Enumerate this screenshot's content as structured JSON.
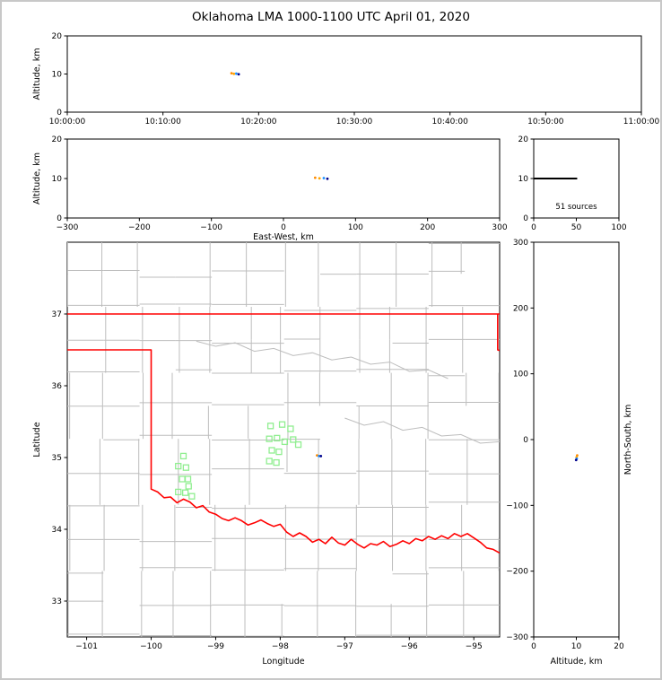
{
  "title": "Oklahoma LMA 1000-1100 UTC April 01, 2020",
  "colors": {
    "frame": "#c8c8c8",
    "axis": "#000000",
    "county": "#bdbdbd",
    "state_border": "#ff0000",
    "cg_marker": "#90ee90",
    "profile_line": "#000000"
  },
  "chart_data": [
    {
      "id": "time_height",
      "type": "scatter",
      "ylabel": "Altitude, km",
      "xlim": [
        36000,
        39600
      ],
      "ylim": [
        0,
        20
      ],
      "xticks": {
        "values": [
          36000,
          36600,
          37200,
          37800,
          38400,
          39000,
          39600
        ],
        "labels": [
          "10:00:00",
          "10:10:00",
          "10:20:00",
          "10:30:00",
          "10:40:00",
          "10:50:00",
          "11:00:00"
        ]
      },
      "yticks": {
        "values": [
          0,
          10,
          20
        ],
        "labels": [
          "0",
          "10",
          "20"
        ]
      },
      "points": [
        [
          37030,
          10.2,
          "#ff8c00"
        ],
        [
          37045,
          10.05,
          "#ffa500"
        ],
        [
          37060,
          10.1,
          "#1e90ff"
        ],
        [
          37075,
          9.95,
          "#00008b"
        ]
      ]
    },
    {
      "id": "ew_height",
      "type": "scatter",
      "xlabel": "East-West, km",
      "ylabel": "Altitude, km",
      "xlim": [
        -300,
        300
      ],
      "ylim": [
        0,
        20
      ],
      "xticks": {
        "values": [
          -300,
          -200,
          -100,
          0,
          100,
          200,
          300
        ],
        "labels": [
          "−300",
          "−200",
          "−100",
          "0",
          "100",
          "200",
          "300"
        ]
      },
      "yticks": {
        "values": [
          0,
          10,
          20
        ],
        "labels": [
          "0",
          "10",
          "20"
        ]
      },
      "points": [
        [
          44,
          10.2,
          "#ff8c00"
        ],
        [
          50,
          10.05,
          "#ffa500"
        ],
        [
          56,
          10.1,
          "#1e90ff"
        ],
        [
          61,
          9.95,
          "#00008b"
        ]
      ]
    },
    {
      "id": "alt_histogram",
      "type": "line",
      "annotation": "51 sources",
      "xlim": [
        0,
        100
      ],
      "ylim": [
        0,
        20
      ],
      "xticks": {
        "values": [
          0,
          50,
          100
        ],
        "labels": [
          "0",
          "50",
          "100"
        ]
      },
      "yticks": {
        "values": [
          0,
          10,
          20
        ],
        "labels": [
          "0",
          "10",
          "20"
        ]
      },
      "profile": {
        "altitude_km": 10,
        "count": 51
      }
    },
    {
      "id": "plan_view",
      "type": "scatter",
      "xlabel": "Longitude",
      "ylabel": "Latitude",
      "xlim": [
        -101.3,
        -94.6
      ],
      "ylim": [
        32.5,
        38.0
      ],
      "xticks": {
        "values": [
          -101,
          -100,
          -99,
          -98,
          -97,
          -96,
          -95
        ],
        "labels": [
          "−101",
          "−100",
          "−99",
          "−98",
          "−97",
          "−96",
          "−95"
        ]
      },
      "yticks": {
        "values": [
          33,
          34,
          35,
          36,
          37
        ],
        "labels": [
          "33",
          "34",
          "35",
          "36",
          "37"
        ]
      },
      "counties": {
        "lon_step": 0.56,
        "lat_step": 0.46
      },
      "state_border": [
        [
          [
            -101.3,
            37.0
          ],
          [
            -94.6,
            37.0
          ]
        ],
        [
          [
            -94.63,
            37.0
          ],
          [
            -94.63,
            36.5
          ],
          [
            -94.6,
            36.49
          ]
        ],
        [
          [
            -101.3,
            36.5
          ],
          [
            -100.0,
            36.5
          ],
          [
            -100.0,
            34.56
          ],
          [
            -99.9,
            34.52
          ],
          [
            -99.8,
            34.44
          ],
          [
            -99.7,
            34.45
          ],
          [
            -99.6,
            34.37
          ],
          [
            -99.5,
            34.42
          ],
          [
            -99.4,
            34.38
          ],
          [
            -99.3,
            34.3
          ],
          [
            -99.2,
            34.33
          ],
          [
            -99.1,
            34.24
          ],
          [
            -99.0,
            34.21
          ],
          [
            -98.9,
            34.15
          ],
          [
            -98.8,
            34.12
          ],
          [
            -98.7,
            34.16
          ],
          [
            -98.6,
            34.12
          ],
          [
            -98.5,
            34.06
          ],
          [
            -98.4,
            34.09
          ],
          [
            -98.3,
            34.13
          ],
          [
            -98.2,
            34.08
          ],
          [
            -98.1,
            34.04
          ],
          [
            -98.0,
            34.07
          ],
          [
            -97.9,
            33.96
          ],
          [
            -97.8,
            33.9
          ],
          [
            -97.7,
            33.95
          ],
          [
            -97.6,
            33.9
          ],
          [
            -97.5,
            33.82
          ],
          [
            -97.4,
            33.86
          ],
          [
            -97.3,
            33.8
          ],
          [
            -97.2,
            33.89
          ],
          [
            -97.1,
            33.81
          ],
          [
            -97.0,
            33.78
          ],
          [
            -96.9,
            33.86
          ],
          [
            -96.8,
            33.79
          ],
          [
            -96.7,
            33.74
          ],
          [
            -96.6,
            33.8
          ],
          [
            -96.5,
            33.78
          ],
          [
            -96.4,
            33.83
          ],
          [
            -96.3,
            33.76
          ],
          [
            -96.2,
            33.79
          ],
          [
            -96.1,
            33.84
          ],
          [
            -96.0,
            33.8
          ],
          [
            -95.9,
            33.87
          ],
          [
            -95.8,
            33.84
          ],
          [
            -95.7,
            33.9
          ],
          [
            -95.6,
            33.86
          ],
          [
            -95.5,
            33.91
          ],
          [
            -95.4,
            33.87
          ],
          [
            -95.3,
            33.94
          ],
          [
            -95.2,
            33.9
          ],
          [
            -95.1,
            33.94
          ],
          [
            -95.0,
            33.88
          ],
          [
            -94.9,
            33.82
          ],
          [
            -94.8,
            33.74
          ],
          [
            -94.7,
            33.72
          ],
          [
            -94.6,
            33.67
          ]
        ]
      ],
      "rivers": [
        [
          [
            -99.3,
            36.62
          ],
          [
            -99.0,
            36.55
          ],
          [
            -98.7,
            36.6
          ],
          [
            -98.4,
            36.48
          ],
          [
            -98.1,
            36.52
          ],
          [
            -97.8,
            36.42
          ],
          [
            -97.5,
            36.46
          ],
          [
            -97.2,
            36.36
          ],
          [
            -96.9,
            36.4
          ],
          [
            -96.6,
            36.3
          ],
          [
            -96.3,
            36.33
          ],
          [
            -96.0,
            36.2
          ],
          [
            -95.7,
            36.22
          ],
          [
            -95.4,
            36.1
          ]
        ],
        [
          [
            -97.0,
            35.55
          ],
          [
            -96.7,
            35.45
          ],
          [
            -96.4,
            35.5
          ],
          [
            -96.1,
            35.38
          ],
          [
            -95.8,
            35.42
          ],
          [
            -95.5,
            35.3
          ],
          [
            -95.2,
            35.32
          ],
          [
            -94.9,
            35.2
          ],
          [
            -94.6,
            35.22
          ]
        ]
      ],
      "cg_strikes": [
        [
          -99.5,
          35.02
        ],
        [
          -99.58,
          34.88
        ],
        [
          -99.46,
          34.86
        ],
        [
          -99.52,
          34.7
        ],
        [
          -99.43,
          34.7
        ],
        [
          -99.58,
          34.52
        ],
        [
          -99.47,
          34.51
        ],
        [
          -99.37,
          34.46
        ],
        [
          -99.42,
          34.6
        ],
        [
          -98.15,
          35.44
        ],
        [
          -97.97,
          35.46
        ],
        [
          -97.84,
          35.4
        ],
        [
          -98.17,
          35.26
        ],
        [
          -98.05,
          35.27
        ],
        [
          -97.93,
          35.22
        ],
        [
          -97.8,
          35.25
        ],
        [
          -98.13,
          35.1
        ],
        [
          -98.02,
          35.08
        ],
        [
          -98.17,
          34.95
        ],
        [
          -98.06,
          34.93
        ],
        [
          -97.72,
          35.18
        ]
      ],
      "points": [
        [
          -97.43,
          35.03,
          "#ff8c00"
        ],
        [
          -97.4,
          35.02,
          "#1e90ff"
        ],
        [
          -97.37,
          35.02,
          "#00008b"
        ]
      ]
    },
    {
      "id": "ns_height",
      "type": "scatter",
      "xlabel": "Altitude, km",
      "ylabel_right": "North-South, km",
      "xlim": [
        0,
        20
      ],
      "ylim": [
        -300,
        300
      ],
      "xticks": {
        "values": [
          0,
          10,
          20
        ],
        "labels": [
          "0",
          "10",
          "20"
        ]
      },
      "yticks": {
        "values": [
          300,
          200,
          100,
          0,
          -100,
          -200,
          -300
        ],
        "labels": [
          "300",
          "200",
          "100",
          "0",
          "−100",
          "−200",
          "−300"
        ]
      },
      "points": [
        [
          10.2,
          -24,
          "#ff8c00"
        ],
        [
          10.05,
          -27,
          "#ffa500"
        ],
        [
          10.1,
          -29,
          "#1e90ff"
        ],
        [
          9.95,
          -31,
          "#00008b"
        ]
      ]
    }
  ]
}
